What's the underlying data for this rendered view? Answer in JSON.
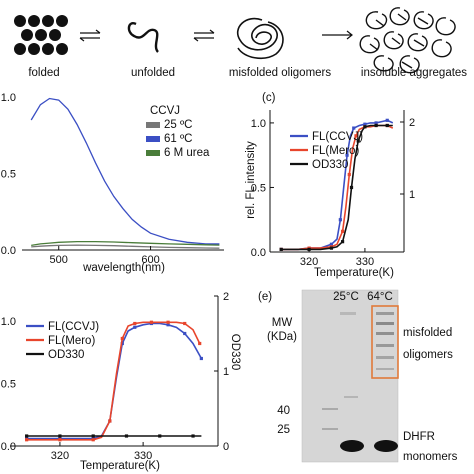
{
  "colors": {
    "blue": "#3b4fc4",
    "red": "#e8452c",
    "black": "#111111",
    "green": "#4a7d3a",
    "grey": "#777777",
    "gel_bg": "#d6d6d6",
    "gel_box": "#e07a3a"
  },
  "scheme": {
    "states": [
      "folded",
      "unfolded",
      "misfolded oligomers",
      "insoluble aggregates"
    ],
    "icons": [
      "folded-spheres-icon",
      "unfolded-chain-icon",
      "misfolded-coil-icon",
      "aggregate-cluster-icon"
    ]
  },
  "panel_labels": {
    "c": "(c)",
    "e": "(e)"
  },
  "gel": {
    "mw_label": "MW",
    "mw_unit": "(KDa)",
    "lanes": [
      "25°C",
      "64°C"
    ],
    "markers": [
      "40",
      "25"
    ],
    "band_labels": [
      "misfolded",
      "oligomers",
      "DHFR",
      "monomers"
    ]
  },
  "chart_data": [
    {
      "id": "b",
      "type": "line",
      "title": "",
      "xlabel": "wavelength(nm)",
      "ylabel": "",
      "xlim": [
        460,
        680
      ],
      "ylim": [
        0,
        1.0
      ],
      "x_ticks": [
        500,
        600
      ],
      "y_ticks": [
        "1.0",
        "0.5",
        "0.0"
      ],
      "y_tick_values": [
        1.0,
        0.5,
        0.0
      ],
      "legend_title": "CCVJ",
      "legend_position": "top-right",
      "grid": false,
      "series": [
        {
          "name": "25 ºC",
          "color": "grey",
          "x": [
            470,
            480,
            490,
            500,
            520,
            540,
            560,
            580,
            600,
            620,
            640,
            660,
            675
          ],
          "y": [
            0.02,
            0.025,
            0.028,
            0.03,
            0.032,
            0.03,
            0.028,
            0.024,
            0.02,
            0.017,
            0.015,
            0.013,
            0.012
          ]
        },
        {
          "name": "61 ºC",
          "color": "blue",
          "x": [
            470,
            480,
            490,
            500,
            510,
            520,
            530,
            540,
            550,
            560,
            570,
            580,
            590,
            600,
            620,
            640,
            660,
            675
          ],
          "y": [
            0.85,
            0.95,
            0.99,
            0.98,
            0.92,
            0.82,
            0.7,
            0.57,
            0.45,
            0.35,
            0.27,
            0.2,
            0.15,
            0.11,
            0.07,
            0.05,
            0.04,
            0.04
          ]
        },
        {
          "name": "6 M urea",
          "color": "green",
          "x": [
            470,
            480,
            490,
            500,
            520,
            540,
            560,
            580,
            600,
            620,
            640,
            660,
            675
          ],
          "y": [
            0.03,
            0.04,
            0.045,
            0.05,
            0.055,
            0.055,
            0.052,
            0.048,
            0.044,
            0.04,
            0.037,
            0.034,
            0.032
          ]
        }
      ]
    },
    {
      "id": "c",
      "type": "line",
      "title": "",
      "xlabel": "Temperature(K)",
      "ylabel": "rel. FL intensity",
      "xlim": [
        313,
        337
      ],
      "ylim": [
        0,
        1.1
      ],
      "x_ticks": [
        320,
        330
      ],
      "y_ticks": [
        "1.0",
        "0.5",
        "0.0"
      ],
      "y_tick_values": [
        1.0,
        0.5,
        0.0
      ],
      "y2_ticks": [
        "2",
        "1"
      ],
      "legend_position": "center-left",
      "grid": false,
      "series": [
        {
          "name": "FL(CCVJ)",
          "color": "blue",
          "x": [
            315,
            318,
            320,
            322,
            324,
            325,
            325.6,
            326.2,
            326.8,
            327.4,
            328,
            329,
            330,
            331,
            332,
            333,
            334,
            335
          ],
          "y": [
            0.02,
            0.02,
            0.03,
            0.03,
            0.06,
            0.1,
            0.25,
            0.5,
            0.75,
            0.9,
            0.96,
            0.98,
            0.99,
            1.0,
            1.0,
            1.01,
            1.02,
            1.0
          ]
        },
        {
          "name": "FL(Mero)",
          "color": "red",
          "x": [
            315,
            318,
            320,
            322,
            324,
            325,
            326,
            326.6,
            327.2,
            327.8,
            328.4,
            329,
            330,
            331,
            332,
            333,
            334,
            335
          ],
          "y": [
            0.02,
            0.02,
            0.03,
            0.03,
            0.04,
            0.06,
            0.16,
            0.35,
            0.6,
            0.8,
            0.9,
            0.95,
            0.97,
            0.97,
            0.98,
            0.98,
            0.98,
            0.96
          ]
        },
        {
          "name": "OD330",
          "color": "black",
          "x": [
            315,
            318,
            320,
            322,
            324,
            325,
            326,
            327,
            327.6,
            328.2,
            328.8,
            329.5,
            330,
            331,
            332,
            333,
            334,
            335
          ],
          "y": [
            0.02,
            0.02,
            0.02,
            0.02,
            0.03,
            0.04,
            0.08,
            0.25,
            0.5,
            0.72,
            0.86,
            0.94,
            0.97,
            0.98,
            0.98,
            0.98,
            0.98,
            0.98
          ]
        }
      ]
    },
    {
      "id": "d",
      "type": "line",
      "title": "",
      "xlabel": "Temperature(K)",
      "ylabel": "",
      "y2label": "OD330",
      "xlim": [
        314,
        339
      ],
      "ylim": [
        0,
        1.2
      ],
      "x_ticks": [
        320,
        330
      ],
      "y_ticks": [
        "1.0",
        "0.5",
        "0.0"
      ],
      "y_tick_values": [
        1.0,
        0.5,
        0.0
      ],
      "y2_ticks": [
        "2",
        "1",
        "0"
      ],
      "legend_position": "center-left",
      "grid": false,
      "series": [
        {
          "name": "FL(CCVJ)",
          "color": "blue",
          "x": [
            316,
            318,
            320,
            322,
            324,
            325,
            326,
            326.8,
            327.5,
            328.2,
            329,
            330,
            331,
            332,
            333,
            334,
            335,
            336,
            337
          ],
          "y": [
            0.06,
            0.06,
            0.06,
            0.06,
            0.06,
            0.08,
            0.2,
            0.55,
            0.82,
            0.92,
            0.95,
            0.97,
            0.98,
            0.98,
            0.97,
            0.95,
            0.9,
            0.82,
            0.7
          ]
        },
        {
          "name": "FL(Mero)",
          "color": "red",
          "x": [
            316,
            318,
            320,
            322,
            324,
            325,
            326,
            326.8,
            327.5,
            328.2,
            329,
            330,
            331,
            332,
            333,
            334,
            335,
            336,
            336.8
          ],
          "y": [
            0.05,
            0.05,
            0.05,
            0.05,
            0.05,
            0.07,
            0.2,
            0.58,
            0.86,
            0.96,
            0.98,
            0.99,
            0.99,
            0.99,
            0.99,
            0.99,
            0.98,
            0.93,
            0.82
          ]
        },
        {
          "name": "OD330",
          "color": "black",
          "x": [
            316,
            318,
            320,
            322,
            324,
            326,
            328,
            330,
            332,
            334,
            336,
            337
          ],
          "y": [
            0.08,
            0.08,
            0.08,
            0.08,
            0.08,
            0.08,
            0.08,
            0.08,
            0.08,
            0.08,
            0.08,
            0.08
          ]
        }
      ]
    }
  ]
}
